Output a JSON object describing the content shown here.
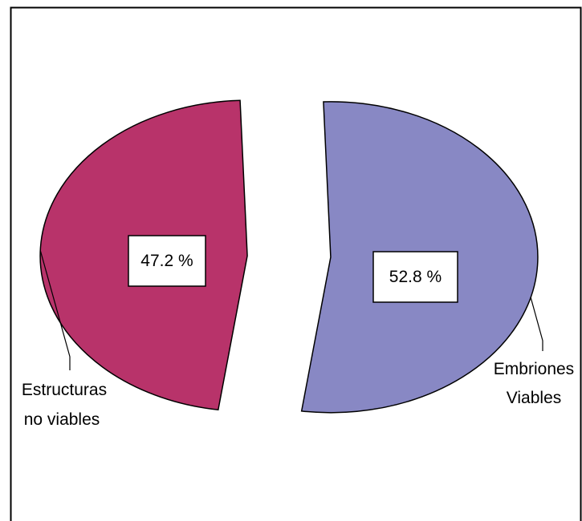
{
  "chart_data": {
    "type": "pie",
    "exploded": true,
    "legend": "none",
    "slices": [
      {
        "label_lines": [
          "Embriones",
          "Viables"
        ],
        "value": 52.8,
        "value_label": "52.8 %",
        "color": "#8888c4"
      },
      {
        "label_lines": [
          "Estructuras",
          "no viables"
        ],
        "value": 47.2,
        "value_label": "47.2 %",
        "color": "#b8336a"
      }
    ]
  }
}
